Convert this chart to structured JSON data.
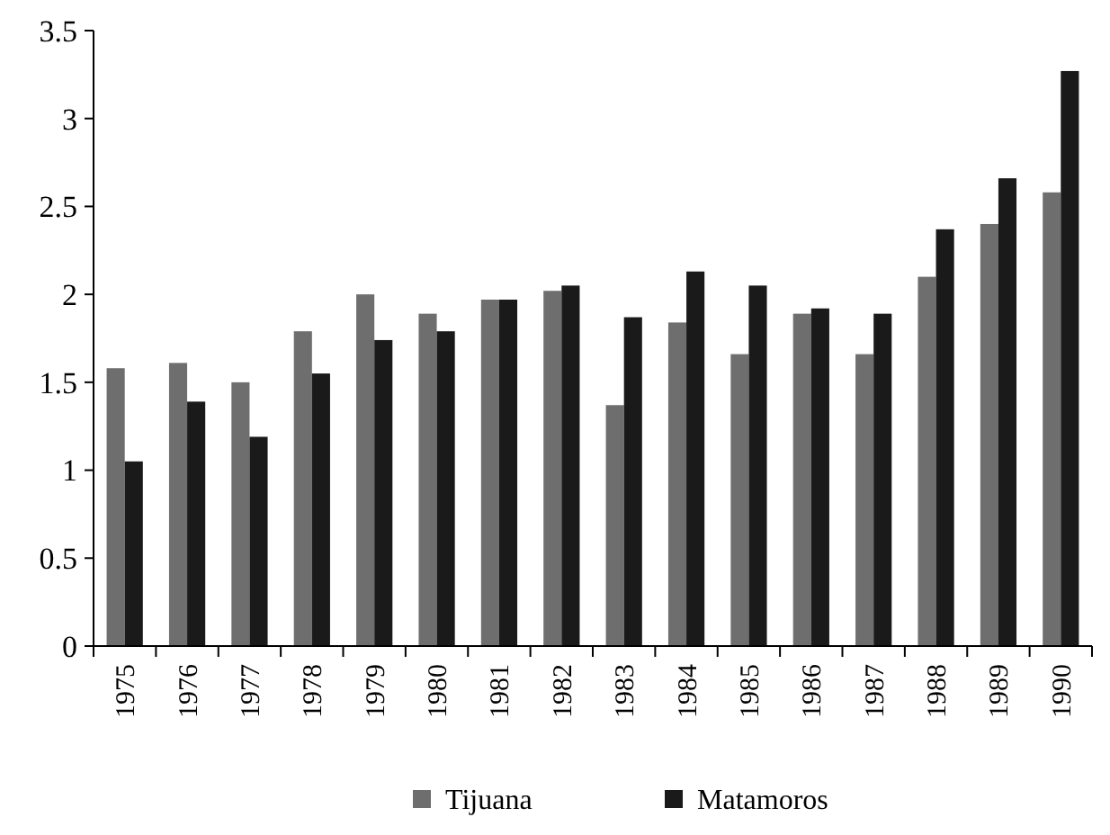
{
  "chart_data": {
    "type": "bar",
    "categories": [
      "1975",
      "1976",
      "1977",
      "1978",
      "1979",
      "1980",
      "1981",
      "1982",
      "1983",
      "1984",
      "1985",
      "1986",
      "1987",
      "1988",
      "1989",
      "1990"
    ],
    "series": [
      {
        "name": "Tijuana",
        "color": "#6e6e6e",
        "values": [
          1.58,
          1.61,
          1.5,
          1.79,
          2.0,
          1.89,
          1.97,
          2.02,
          1.37,
          1.84,
          1.66,
          1.89,
          1.66,
          2.1,
          2.4,
          2.58
        ]
      },
      {
        "name": "Matamoros",
        "color": "#1a1a1a",
        "values": [
          1.05,
          1.39,
          1.19,
          1.55,
          1.74,
          1.79,
          1.97,
          2.05,
          1.87,
          2.13,
          2.05,
          1.92,
          1.89,
          2.37,
          2.66,
          3.27
        ]
      }
    ],
    "ylim": [
      0,
      3.5
    ],
    "yticks": [
      0,
      0.5,
      1,
      1.5,
      2,
      2.5,
      3,
      3.5
    ],
    "grid": false,
    "legend": "bottom"
  }
}
